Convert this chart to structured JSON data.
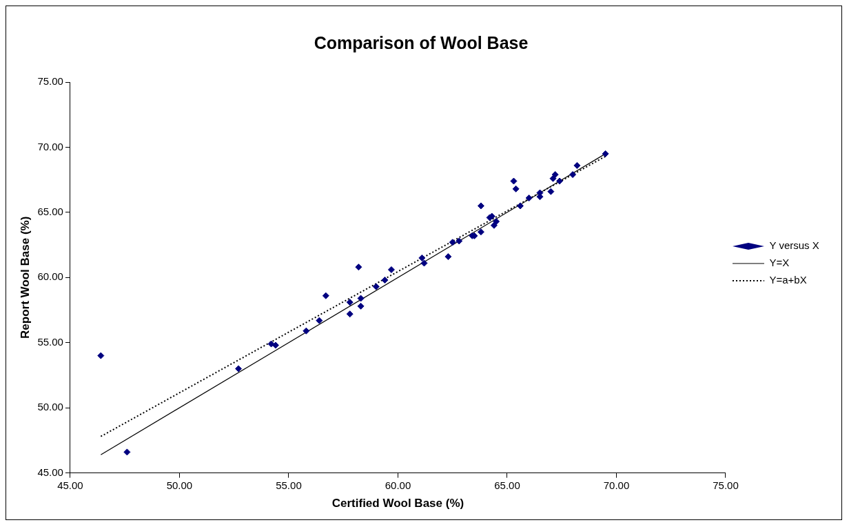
{
  "chart_data": {
    "type": "scatter",
    "title": "Comparison of Wool Base",
    "xlabel": "Certified Wool Base (%)",
    "ylabel": "Report Wool Base (%)",
    "xlim": [
      45,
      75
    ],
    "ylim": [
      45,
      75
    ],
    "xticks": [
      {
        "value": 45,
        "label": "45.00"
      },
      {
        "value": 50,
        "label": "50.00"
      },
      {
        "value": 55,
        "label": "55.00"
      },
      {
        "value": 60,
        "label": "60.00"
      },
      {
        "value": 65,
        "label": "65.00"
      },
      {
        "value": 70,
        "label": "70.00"
      },
      {
        "value": 75,
        "label": "75.00"
      }
    ],
    "yticks": [
      {
        "value": 45,
        "label": "45.00"
      },
      {
        "value": 50,
        "label": "50.00"
      },
      {
        "value": 55,
        "label": "55.00"
      },
      {
        "value": 60,
        "label": "60.00"
      },
      {
        "value": 65,
        "label": "65.00"
      },
      {
        "value": 70,
        "label": "70.00"
      },
      {
        "value": 75,
        "label": "75.00"
      }
    ],
    "grid": false,
    "legend": "right",
    "marker": "diamond",
    "series": [
      {
        "name": "Y versus X",
        "type": "scatter",
        "color": "#000080",
        "x": [
          46.4,
          47.6,
          52.7,
          54.2,
          54.4,
          55.8,
          56.4,
          56.7,
          57.8,
          57.8,
          58.2,
          58.3,
          58.3,
          59.0,
          59.4,
          59.7,
          61.1,
          61.2,
          62.3,
          62.5,
          62.8,
          63.4,
          63.5,
          63.8,
          63.8,
          64.2,
          64.3,
          64.4,
          64.5,
          65.3,
          65.4,
          65.6,
          66.0,
          66.5,
          66.5,
          67.0,
          67.1,
          67.2,
          67.4,
          68.0,
          68.2,
          69.5
        ],
        "values": [
          54.0,
          46.6,
          53.0,
          54.9,
          54.8,
          55.9,
          56.7,
          58.6,
          58.1,
          57.2,
          60.8,
          58.4,
          57.8,
          59.3,
          59.8,
          60.6,
          61.5,
          61.1,
          61.6,
          62.7,
          62.8,
          63.2,
          63.2,
          63.5,
          65.5,
          64.6,
          64.7,
          64.0,
          64.3,
          67.4,
          66.8,
          65.5,
          66.1,
          66.5,
          66.2,
          66.6,
          67.6,
          67.9,
          67.4,
          67.9,
          68.6,
          69.5
        ]
      },
      {
        "name": "Y=X",
        "type": "line",
        "color": "#000000",
        "line_style": "solid",
        "marker": "none",
        "x": [
          46.4,
          69.5
        ],
        "values": [
          46.4,
          69.5
        ]
      },
      {
        "name": "Y=a+bX",
        "type": "line",
        "color": "#000000",
        "line_style": "dotted",
        "marker": "none",
        "x": [
          46.4,
          69.5
        ],
        "values": [
          47.8,
          69.3
        ]
      }
    ]
  }
}
